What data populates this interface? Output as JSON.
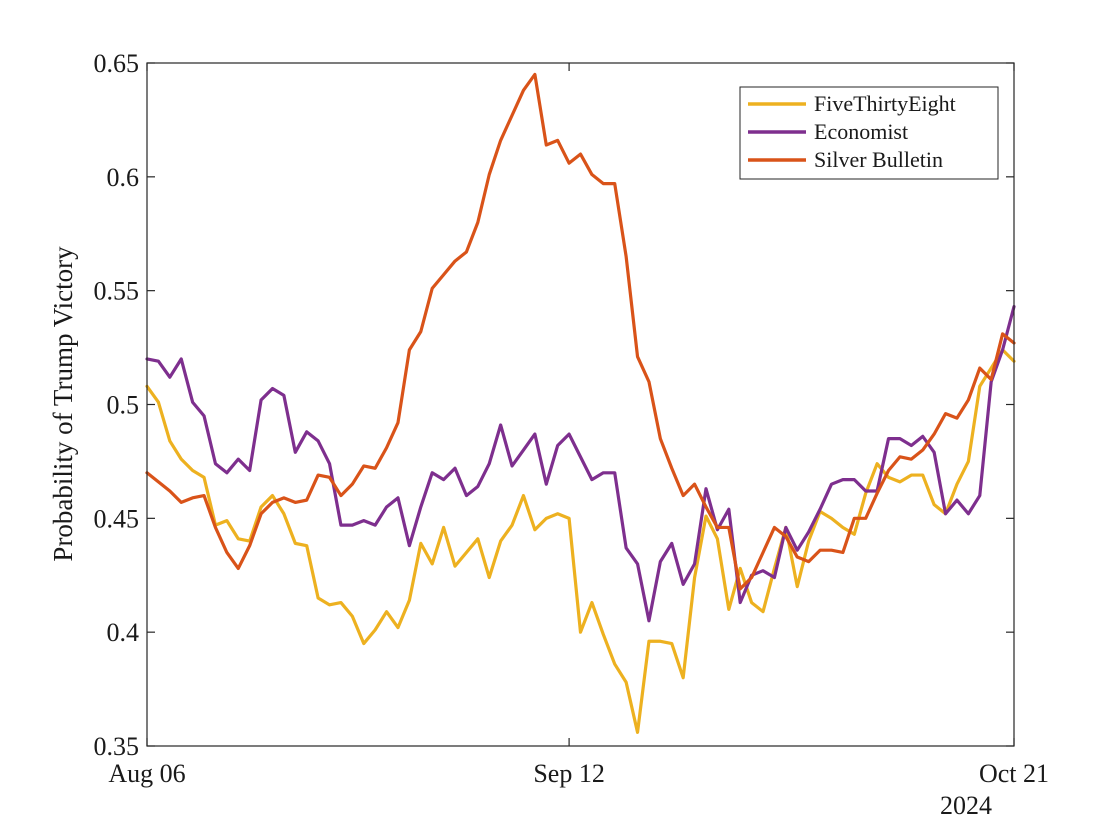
{
  "chart_data": {
    "type": "line",
    "xlabel": "",
    "ylabel": "Probability of Trump Victory",
    "ylim": [
      0.35,
      0.65
    ],
    "yticks": [
      "0.35",
      "0.4",
      "0.45",
      "0.5",
      "0.55",
      "0.6",
      "0.65"
    ],
    "xlim": [
      "2024-08-06",
      "2024-10-21"
    ],
    "xticks": [
      {
        "date": "2024-08-06",
        "label": "Aug 06"
      },
      {
        "date": "2024-09-12",
        "label": "Sep 12"
      },
      {
        "date": "2024-10-21",
        "label": "Oct 21"
      }
    ],
    "year_label": "2024",
    "grid": false,
    "legend_position": "top-right",
    "x": [
      "2024-08-06",
      "2024-08-07",
      "2024-08-08",
      "2024-08-09",
      "2024-08-10",
      "2024-08-11",
      "2024-08-12",
      "2024-08-13",
      "2024-08-14",
      "2024-08-15",
      "2024-08-16",
      "2024-08-17",
      "2024-08-18",
      "2024-08-19",
      "2024-08-20",
      "2024-08-21",
      "2024-08-22",
      "2024-08-23",
      "2024-08-24",
      "2024-08-25",
      "2024-08-26",
      "2024-08-27",
      "2024-08-28",
      "2024-08-29",
      "2024-08-30",
      "2024-08-31",
      "2024-09-01",
      "2024-09-02",
      "2024-09-03",
      "2024-09-04",
      "2024-09-05",
      "2024-09-06",
      "2024-09-07",
      "2024-09-08",
      "2024-09-09",
      "2024-09-10",
      "2024-09-11",
      "2024-09-12",
      "2024-09-13",
      "2024-09-14",
      "2024-09-15",
      "2024-09-16",
      "2024-09-17",
      "2024-09-18",
      "2024-09-19",
      "2024-09-20",
      "2024-09-21",
      "2024-09-22",
      "2024-09-23",
      "2024-09-24",
      "2024-09-25",
      "2024-09-26",
      "2024-09-27",
      "2024-09-28",
      "2024-09-29",
      "2024-09-30",
      "2024-10-01",
      "2024-10-02",
      "2024-10-03",
      "2024-10-04",
      "2024-10-05",
      "2024-10-06",
      "2024-10-07",
      "2024-10-08",
      "2024-10-09",
      "2024-10-10",
      "2024-10-11",
      "2024-10-12",
      "2024-10-13",
      "2024-10-14",
      "2024-10-15",
      "2024-10-16",
      "2024-10-17",
      "2024-10-18",
      "2024-10-19",
      "2024-10-20",
      "2024-10-21"
    ],
    "series": [
      {
        "name": "FiveThirtyEight",
        "color": "#EDB120",
        "values": [
          0.508,
          0.501,
          0.484,
          0.476,
          0.471,
          0.468,
          0.447,
          0.449,
          0.441,
          0.44,
          0.455,
          0.46,
          0.452,
          0.439,
          0.438,
          0.415,
          0.412,
          0.413,
          0.407,
          0.395,
          0.401,
          0.409,
          0.402,
          0.414,
          0.439,
          0.43,
          0.446,
          0.429,
          0.435,
          0.441,
          0.424,
          0.44,
          0.447,
          0.46,
          0.445,
          0.45,
          0.452,
          0.45,
          0.4,
          0.413,
          0.399,
          0.386,
          0.378,
          0.356,
          0.396,
          0.396,
          0.395,
          0.38,
          0.424,
          0.451,
          0.441,
          0.41,
          0.428,
          0.413,
          0.409,
          0.428,
          0.446,
          0.42,
          0.44,
          0.453,
          0.45,
          0.446,
          0.443,
          0.461,
          0.474,
          0.468,
          0.466,
          0.469,
          0.469,
          0.456,
          0.452,
          0.465,
          0.475,
          0.508,
          0.516,
          0.524,
          0.519
        ]
      },
      {
        "name": "Economist",
        "color": "#7E2F8E",
        "values": [
          0.52,
          0.519,
          0.512,
          0.52,
          0.501,
          0.495,
          0.474,
          0.47,
          0.476,
          0.471,
          0.502,
          0.507,
          0.504,
          0.479,
          0.488,
          0.484,
          0.474,
          0.447,
          0.447,
          0.449,
          0.447,
          0.455,
          0.459,
          0.438,
          0.455,
          0.47,
          0.467,
          0.472,
          0.46,
          0.464,
          0.474,
          0.491,
          0.473,
          0.48,
          0.487,
          0.465,
          0.482,
          0.487,
          0.477,
          0.467,
          0.47,
          0.47,
          0.437,
          0.43,
          0.405,
          0.431,
          0.439,
          0.421,
          0.43,
          0.463,
          0.445,
          0.454,
          0.413,
          0.425,
          0.427,
          0.424,
          0.446,
          0.436,
          0.444,
          0.454,
          0.465,
          0.467,
          0.467,
          0.462,
          0.462,
          0.485,
          0.485,
          0.482,
          0.486,
          0.479,
          0.452,
          0.458,
          0.452,
          0.46,
          0.51,
          0.524,
          0.543
        ]
      },
      {
        "name": "Silver Bulletin",
        "color": "#D95319",
        "values": [
          0.47,
          0.466,
          0.462,
          0.457,
          0.459,
          0.46,
          0.446,
          0.435,
          0.428,
          0.438,
          0.452,
          0.457,
          0.459,
          0.457,
          0.458,
          0.469,
          0.468,
          0.46,
          0.465,
          0.473,
          0.472,
          0.481,
          0.492,
          0.524,
          0.532,
          0.551,
          0.557,
          0.563,
          0.567,
          0.58,
          0.601,
          0.616,
          0.627,
          0.638,
          0.645,
          0.614,
          0.616,
          0.606,
          0.61,
          0.601,
          0.597,
          0.597,
          0.565,
          0.521,
          0.51,
          0.485,
          0.472,
          0.46,
          0.465,
          0.455,
          0.446,
          0.446,
          0.419,
          0.424,
          0.435,
          0.446,
          0.442,
          0.433,
          0.431,
          0.436,
          0.436,
          0.435,
          0.45,
          0.45,
          0.461,
          0.471,
          0.477,
          0.476,
          0.48,
          0.487,
          0.496,
          0.494,
          0.502,
          0.516,
          0.511,
          0.531,
          0.527
        ]
      }
    ]
  }
}
